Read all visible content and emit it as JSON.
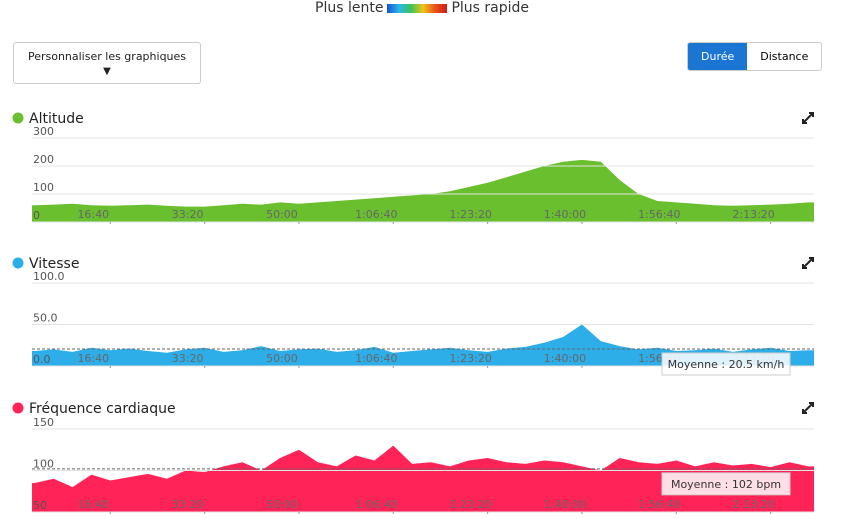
{
  "header": {
    "slow": "Plus lente",
    "fast": "Plus rapide"
  },
  "controls": {
    "customize": "Personnaliser les graphiques",
    "duration": "Durée",
    "distance": "Distance"
  },
  "chart_data": [
    {
      "type": "area",
      "title": "Altitude",
      "color": "#6abf2f",
      "x": [
        200,
        400,
        600,
        800,
        1000,
        1200,
        1400,
        1600,
        1800,
        2000,
        2200,
        2400,
        2600,
        2800,
        3000,
        3200,
        3400,
        3600,
        3800,
        4000,
        4200,
        4400,
        4600,
        4800,
        5000,
        5200,
        5400,
        5600,
        5800,
        6000,
        6200,
        6400,
        6600,
        6800,
        7000,
        7200,
        7400,
        7600,
        7800,
        8000,
        8200,
        8400
      ],
      "values": [
        60,
        62,
        65,
        60,
        58,
        60,
        62,
        58,
        55,
        55,
        60,
        65,
        62,
        70,
        65,
        70,
        75,
        80,
        85,
        90,
        95,
        100,
        110,
        125,
        140,
        160,
        180,
        200,
        215,
        222,
        215,
        150,
        100,
        75,
        70,
        65,
        60,
        58,
        60,
        62,
        65,
        70
      ],
      "xlim": [
        170,
        8460
      ],
      "ylim": [
        0,
        300
      ],
      "yticks": [
        0,
        100,
        200,
        300
      ],
      "xticks": [
        {
          "value": 1000,
          "label": "16:40"
        },
        {
          "value": 2000,
          "label": "33:20"
        },
        {
          "value": 3000,
          "label": "50:00"
        },
        {
          "value": 4000,
          "label": "1:06:40"
        },
        {
          "value": 5000,
          "label": "1:23:20"
        },
        {
          "value": 6000,
          "label": "1:40:00"
        },
        {
          "value": 7000,
          "label": "1:56:40"
        },
        {
          "value": 8000,
          "label": "2:13:20"
        }
      ],
      "grid": true
    },
    {
      "type": "area",
      "title": "Vitesse",
      "color": "#2eaee8",
      "x": [
        200,
        400,
        600,
        800,
        1000,
        1200,
        1400,
        1600,
        1800,
        2000,
        2200,
        2400,
        2600,
        2800,
        3000,
        3200,
        3400,
        3600,
        3800,
        4000,
        4200,
        4400,
        4600,
        4800,
        5000,
        5200,
        5400,
        5600,
        5800,
        6000,
        6200,
        6400,
        6600,
        6800,
        7000,
        7200,
        7400,
        7600,
        7800,
        8000,
        8200,
        8400
      ],
      "values": [
        18,
        20,
        17,
        22,
        19,
        21,
        18,
        16,
        20,
        22,
        17,
        19,
        24,
        18,
        20,
        21,
        17,
        19,
        23,
        16,
        18,
        20,
        22,
        19,
        17,
        21,
        23,
        28,
        35,
        50,
        30,
        24,
        20,
        22,
        18,
        19,
        21,
        17,
        20,
        22,
        18,
        19
      ],
      "xlim": [
        170,
        8460
      ],
      "ylim": [
        0,
        100
      ],
      "yticks": [
        {
          "value": 0,
          "label": "0.0"
        },
        {
          "value": 50,
          "label": "50.0"
        },
        {
          "value": 100,
          "label": "100.0"
        }
      ],
      "xticks": [
        {
          "value": 1000,
          "label": "16:40"
        },
        {
          "value": 2000,
          "label": "33:20"
        },
        {
          "value": 3000,
          "label": "50:00"
        },
        {
          "value": 4000,
          "label": "1:06:40"
        },
        {
          "value": 5000,
          "label": "1:23:20"
        },
        {
          "value": 6000,
          "label": "1:40:00"
        },
        {
          "value": 7000,
          "label": "1:56:40"
        },
        {
          "value": 8000,
          "label": "2:13:20"
        }
      ],
      "grid": true,
      "average": 20.5,
      "average_label": "Moyenne : 20.5 km/h"
    },
    {
      "type": "area",
      "title": "Fréquence cardiaque",
      "color": "#ff2357",
      "x": [
        200,
        400,
        600,
        800,
        1000,
        1200,
        1400,
        1600,
        1800,
        2000,
        2200,
        2400,
        2600,
        2800,
        3000,
        3200,
        3400,
        3600,
        3800,
        4000,
        4200,
        4400,
        4600,
        4800,
        5000,
        5200,
        5400,
        5600,
        5800,
        6000,
        6200,
        6400,
        6600,
        6800,
        7000,
        7200,
        7400,
        7600,
        7800,
        8000,
        8200,
        8400
      ],
      "values": [
        85,
        90,
        80,
        95,
        88,
        92,
        96,
        90,
        100,
        98,
        105,
        110,
        100,
        115,
        125,
        110,
        105,
        118,
        112,
        130,
        108,
        110,
        105,
        112,
        115,
        110,
        108,
        112,
        110,
        105,
        100,
        115,
        110,
        108,
        112,
        105,
        110,
        106,
        108,
        104,
        110,
        105
      ],
      "xlim": [
        170,
        8460
      ],
      "ylim": [
        50,
        150
      ],
      "yticks": [
        50,
        100,
        150
      ],
      "xticks": [
        {
          "value": 1000,
          "label": "16:40"
        },
        {
          "value": 2000,
          "label": "33:20"
        },
        {
          "value": 3000,
          "label": "50:00"
        },
        {
          "value": 4000,
          "label": "1:06:40"
        },
        {
          "value": 5000,
          "label": "1:23:20"
        },
        {
          "value": 6000,
          "label": "1:40:00"
        },
        {
          "value": 7000,
          "label": "1:56:40"
        },
        {
          "value": 8000,
          "label": "2:13:20"
        }
      ],
      "grid": true,
      "average": 102,
      "average_label": "Moyenne : 102 bpm"
    }
  ]
}
